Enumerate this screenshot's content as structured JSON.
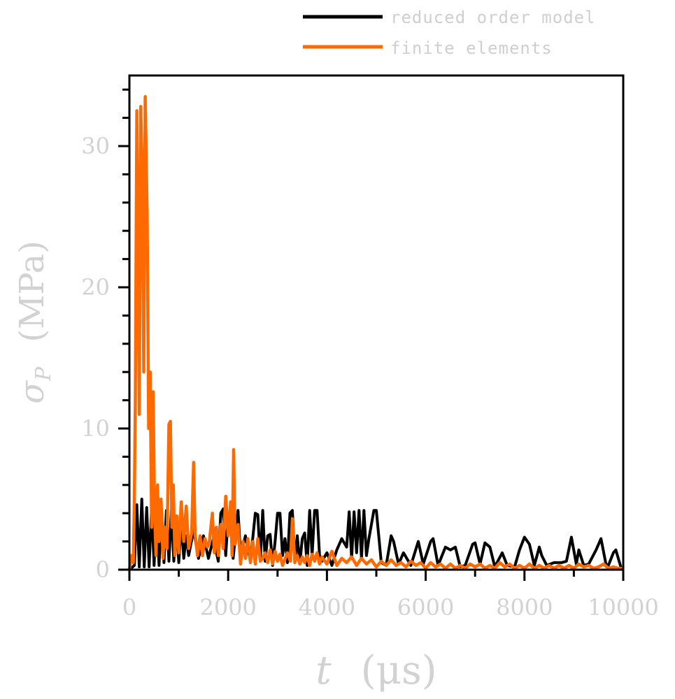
{
  "chart_data": {
    "type": "line",
    "xlabel": "t",
    "xunit": "(μs)",
    "ylabel": "σ",
    "ylabel_sub": "P",
    "yunit": "(MPa)",
    "xlim": [
      0,
      10000
    ],
    "ylim": [
      0,
      35
    ],
    "x_ticks": [
      "0",
      "2000",
      "4000",
      "6000",
      "8000",
      "10000"
    ],
    "y_ticks": [
      "0",
      "10",
      "20",
      "30"
    ],
    "grid": false,
    "legend_position": "top-right",
    "series": [
      {
        "name": "reduced order model",
        "color": "#000000",
        "points": [
          [
            0,
            0
          ],
          [
            100,
            0.3
          ],
          [
            150,
            4.6
          ],
          [
            200,
            0.2
          ],
          [
            250,
            5.0
          ],
          [
            300,
            0.2
          ],
          [
            350,
            4.4
          ],
          [
            400,
            0.2
          ],
          [
            450,
            4.4
          ],
          [
            500,
            0.3
          ],
          [
            550,
            4.3
          ],
          [
            600,
            0.3
          ],
          [
            650,
            4.3
          ],
          [
            700,
            0.5
          ],
          [
            750,
            4.2
          ],
          [
            800,
            0.6
          ],
          [
            850,
            4.2
          ],
          [
            900,
            0.6
          ],
          [
            950,
            3.8
          ],
          [
            1000,
            0.5
          ],
          [
            1050,
            3.4
          ],
          [
            1100,
            0.8
          ],
          [
            1150,
            2.4
          ],
          [
            1200,
            1.0
          ],
          [
            1300,
            2.8
          ],
          [
            1400,
            0.8
          ],
          [
            1500,
            2.4
          ],
          [
            1600,
            0.8
          ],
          [
            1700,
            2.2
          ],
          [
            1800,
            0.6
          ],
          [
            1850,
            4.0
          ],
          [
            1900,
            4.3
          ],
          [
            1950,
            1.0
          ],
          [
            2000,
            3.8
          ],
          [
            2050,
            4.3
          ],
          [
            2100,
            0.8
          ],
          [
            2200,
            4.2
          ],
          [
            2250,
            1.0
          ],
          [
            2350,
            2.4
          ],
          [
            2450,
            0.6
          ],
          [
            2550,
            4.0
          ],
          [
            2600,
            3.9
          ],
          [
            2650,
            0.6
          ],
          [
            2700,
            4.2
          ],
          [
            2750,
            0.6
          ],
          [
            2800,
            2.4
          ],
          [
            2850,
            2.5
          ],
          [
            2900,
            0.3
          ],
          [
            2950,
            2.0
          ],
          [
            3000,
            4.0
          ],
          [
            3050,
            4.0
          ],
          [
            3100,
            1.0
          ],
          [
            3150,
            2.2
          ],
          [
            3200,
            0.5
          ],
          [
            3250,
            4.0
          ],
          [
            3300,
            4.2
          ],
          [
            3350,
            0.6
          ],
          [
            3400,
            2.4
          ],
          [
            3450,
            0.4
          ],
          [
            3500,
            2.2
          ],
          [
            3550,
            2.6
          ],
          [
            3600,
            0.3
          ],
          [
            3650,
            4.2
          ],
          [
            3700,
            1.0
          ],
          [
            3750,
            4.2
          ],
          [
            3800,
            4.2
          ],
          [
            3850,
            1.0
          ],
          [
            3900,
            0.6
          ],
          [
            4000,
            1.2
          ],
          [
            4100,
            0.3
          ],
          [
            4200,
            1.4
          ],
          [
            4300,
            2.2
          ],
          [
            4400,
            1.6
          ],
          [
            4450,
            4.1
          ],
          [
            4500,
            0.8
          ],
          [
            4550,
            4.1
          ],
          [
            4600,
            1.2
          ],
          [
            4650,
            4.2
          ],
          [
            4700,
            0.8
          ],
          [
            4750,
            4.2
          ],
          [
            4800,
            1.0
          ],
          [
            4850,
            2.2
          ],
          [
            4950,
            4.2
          ],
          [
            5000,
            4.2
          ],
          [
            5100,
            0.5
          ],
          [
            5200,
            0.3
          ],
          [
            5300,
            2.4
          ],
          [
            5350,
            2.0
          ],
          [
            5450,
            0.4
          ],
          [
            5550,
            1.2
          ],
          [
            5700,
            0.3
          ],
          [
            5850,
            2.0
          ],
          [
            5950,
            0.4
          ],
          [
            6100,
            2.0
          ],
          [
            6150,
            2.2
          ],
          [
            6250,
            0.3
          ],
          [
            6400,
            1.6
          ],
          [
            6500,
            1.4
          ],
          [
            6600,
            1.6
          ],
          [
            6700,
            0.2
          ],
          [
            6800,
            0.3
          ],
          [
            6950,
            1.8
          ],
          [
            7000,
            1.9
          ],
          [
            7100,
            0.4
          ],
          [
            7200,
            1.9
          ],
          [
            7300,
            1.6
          ],
          [
            7400,
            0.2
          ],
          [
            7550,
            1.2
          ],
          [
            7650,
            0.3
          ],
          [
            7800,
            0.2
          ],
          [
            7900,
            1.4
          ],
          [
            8000,
            2.3
          ],
          [
            8100,
            1.8
          ],
          [
            8200,
            0.3
          ],
          [
            8300,
            1.6
          ],
          [
            8350,
            1.0
          ],
          [
            8450,
            0.3
          ],
          [
            8600,
            0.5
          ],
          [
            8750,
            0.5
          ],
          [
            8850,
            0.6
          ],
          [
            8950,
            2.3
          ],
          [
            9050,
            0.4
          ],
          [
            9100,
            1.4
          ],
          [
            9200,
            0.3
          ],
          [
            9300,
            0.4
          ],
          [
            9450,
            1.4
          ],
          [
            9550,
            2.2
          ],
          [
            9650,
            0.4
          ],
          [
            9700,
            0.3
          ],
          [
            9800,
            1.2
          ],
          [
            9850,
            1.4
          ],
          [
            9950,
            0.2
          ],
          [
            10000,
            0.0
          ]
        ]
      },
      {
        "name": "finite elements",
        "color": "#ff6a00",
        "points": [
          [
            0,
            0
          ],
          [
            40,
            1.0
          ],
          [
            80,
            0.5
          ],
          [
            100,
            5.0
          ],
          [
            120,
            12.0
          ],
          [
            150,
            32.5
          ],
          [
            180,
            20.0
          ],
          [
            200,
            11.0
          ],
          [
            230,
            32.8
          ],
          [
            260,
            28.0
          ],
          [
            290,
            14.0
          ],
          [
            320,
            33.5
          ],
          [
            360,
            25.0
          ],
          [
            390,
            10.0
          ],
          [
            420,
            14.0
          ],
          [
            450,
            3.0
          ],
          [
            480,
            12.6
          ],
          [
            510,
            4.0
          ],
          [
            540,
            1.0
          ],
          [
            570,
            6.0
          ],
          [
            600,
            2.0
          ],
          [
            640,
            5.0
          ],
          [
            680,
            0.8
          ],
          [
            720,
            3.0
          ],
          [
            760,
            1.5
          ],
          [
            800,
            10.3
          ],
          [
            830,
            10.5
          ],
          [
            860,
            3.0
          ],
          [
            890,
            6.0
          ],
          [
            920,
            1.0
          ],
          [
            960,
            3.8
          ],
          [
            1000,
            1.2
          ],
          [
            1050,
            4.8
          ],
          [
            1100,
            2.0
          ],
          [
            1150,
            4.5
          ],
          [
            1200,
            1.5
          ],
          [
            1260,
            2.6
          ],
          [
            1300,
            7.6
          ],
          [
            1330,
            2.5
          ],
          [
            1380,
            1.0
          ],
          [
            1430,
            2.4
          ],
          [
            1480,
            1.0
          ],
          [
            1530,
            2.2
          ],
          [
            1580,
            1.6
          ],
          [
            1620,
            2.0
          ],
          [
            1680,
            4.0
          ],
          [
            1720,
            1.2
          ],
          [
            1760,
            3.0
          ],
          [
            1800,
            1.0
          ],
          [
            1850,
            3.2
          ],
          [
            1900,
            1.5
          ],
          [
            1950,
            5.2
          ],
          [
            2000,
            2.4
          ],
          [
            2050,
            4.8
          ],
          [
            2080,
            1.0
          ],
          [
            2110,
            8.5
          ],
          [
            2140,
            1.8
          ],
          [
            2200,
            3.2
          ],
          [
            2250,
            0.4
          ],
          [
            2300,
            2.0
          ],
          [
            2350,
            0.8
          ],
          [
            2400,
            2.2
          ],
          [
            2450,
            0.5
          ],
          [
            2500,
            2.0
          ],
          [
            2550,
            0.4
          ],
          [
            2600,
            2.2
          ],
          [
            2650,
            0.6
          ],
          [
            2700,
            0.8
          ],
          [
            2750,
            1.2
          ],
          [
            2800,
            0.5
          ],
          [
            2850,
            1.4
          ],
          [
            2900,
            0.4
          ],
          [
            2950,
            1.3
          ],
          [
            3000,
            0.6
          ],
          [
            3050,
            1.1
          ],
          [
            3100,
            0.3
          ],
          [
            3200,
            1.2
          ],
          [
            3260,
            0.6
          ],
          [
            3300,
            3.6
          ],
          [
            3350,
            0.5
          ],
          [
            3400,
            1.0
          ],
          [
            3450,
            0.4
          ],
          [
            3500,
            0.9
          ],
          [
            3550,
            0.5
          ],
          [
            3600,
            1.0
          ],
          [
            3650,
            0.3
          ],
          [
            3700,
            1.1
          ],
          [
            3750,
            0.6
          ],
          [
            3800,
            1.2
          ],
          [
            3850,
            0.4
          ],
          [
            3900,
            0.9
          ],
          [
            4000,
            0.4
          ],
          [
            4100,
            1.3
          ],
          [
            4200,
            0.3
          ],
          [
            4300,
            0.8
          ],
          [
            4400,
            0.5
          ],
          [
            4500,
            0.9
          ],
          [
            4600,
            0.3
          ],
          [
            4700,
            0.8
          ],
          [
            4800,
            0.4
          ],
          [
            4900,
            0.7
          ],
          [
            5000,
            0.2
          ],
          [
            5100,
            0.6
          ],
          [
            5200,
            0.3
          ],
          [
            5300,
            0.7
          ],
          [
            5400,
            0.3
          ],
          [
            5500,
            0.5
          ],
          [
            5600,
            0.2
          ],
          [
            5700,
            0.6
          ],
          [
            5800,
            0.3
          ],
          [
            5900,
            0.5
          ],
          [
            6000,
            0.1
          ],
          [
            6100,
            0.5
          ],
          [
            6200,
            0.2
          ],
          [
            6300,
            0.4
          ],
          [
            6400,
            0.1
          ],
          [
            6500,
            0.4
          ],
          [
            6600,
            0.1
          ],
          [
            6700,
            0.3
          ],
          [
            6800,
            0.1
          ],
          [
            6900,
            0.4
          ],
          [
            7000,
            0.2
          ],
          [
            7100,
            0.4
          ],
          [
            7200,
            0.1
          ],
          [
            7300,
            0.3
          ],
          [
            7400,
            0.1
          ],
          [
            7500,
            0.5
          ],
          [
            7600,
            0.2
          ],
          [
            7700,
            0.4
          ],
          [
            7800,
            0.1
          ],
          [
            7900,
            0.3
          ],
          [
            8000,
            0.1
          ],
          [
            8100,
            0.4
          ],
          [
            8200,
            0.1
          ],
          [
            8300,
            0.3
          ],
          [
            8400,
            0.1
          ],
          [
            8500,
            0.3
          ],
          [
            8600,
            0.1
          ],
          [
            8700,
            0.3
          ],
          [
            8800,
            0.1
          ],
          [
            8900,
            0.3
          ],
          [
            9000,
            0.1
          ],
          [
            9100,
            0.4
          ],
          [
            9200,
            0.2
          ],
          [
            9300,
            0.3
          ],
          [
            9400,
            0.1
          ],
          [
            9500,
            0.2
          ],
          [
            9600,
            0.4
          ],
          [
            9700,
            0.1
          ],
          [
            9800,
            0.2
          ],
          [
            9900,
            0.1
          ],
          [
            10000,
            0.1
          ]
        ]
      }
    ]
  }
}
